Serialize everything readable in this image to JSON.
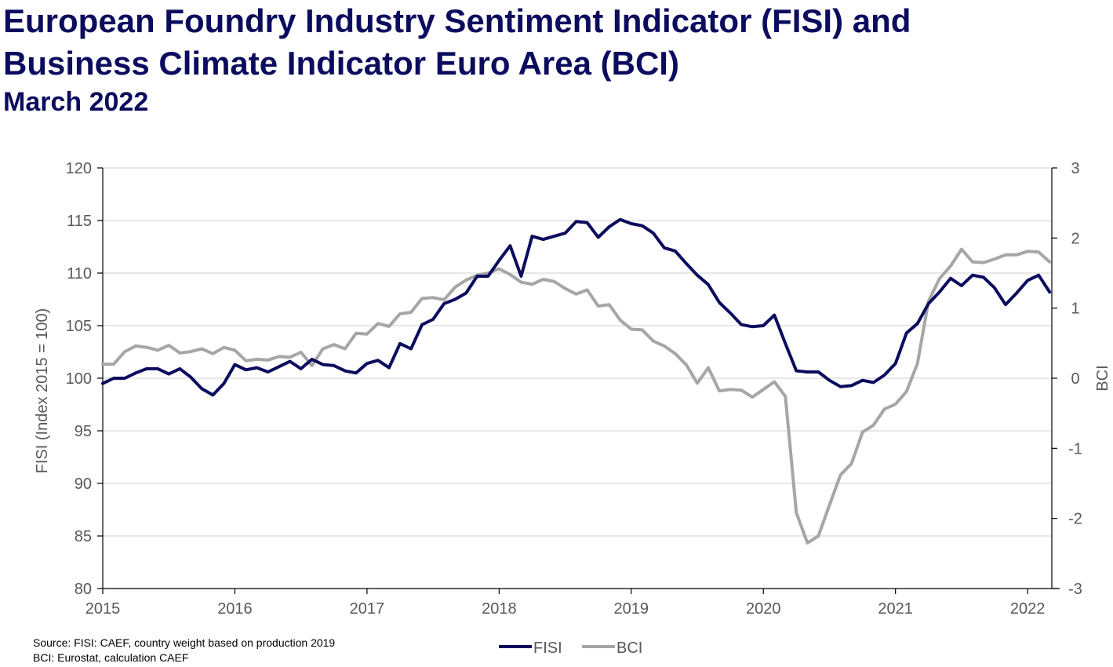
{
  "header": {
    "title_line1": "European Foundry Industry Sentiment Indicator (FISI) and",
    "title_line2": "Business Climate Indicator Euro Area (BCI)",
    "subtitle": "March 2022"
  },
  "source": {
    "line1": "Source: FISI: CAEF, country weight based on production 2019",
    "line2": "BCI: Eurostat, calculation CAEF"
  },
  "chart_data": {
    "type": "line",
    "x_ticks": [
      "2015",
      "2016",
      "2017",
      "2018",
      "2019",
      "2020",
      "2021",
      "2022"
    ],
    "x_start": "2015-01",
    "x_end": "2022-03",
    "y_left": {
      "label": "FISI (Index 2015 = 100)",
      "min": 80,
      "max": 120,
      "step": 5,
      "ticks": [
        "80",
        "85",
        "90",
        "95",
        "100",
        "105",
        "110",
        "115",
        "120"
      ]
    },
    "y_right": {
      "label": "BCI",
      "min": -3,
      "max": 3,
      "step": 1,
      "ticks": [
        "-3",
        "-2",
        "-1",
        "0",
        "1",
        "2",
        "3"
      ]
    },
    "grid": true,
    "legend": {
      "position": "bottom",
      "entries": [
        "FISI",
        "BCI"
      ]
    },
    "colors": {
      "FISI": "#0b0c5e",
      "BCI": "#a6a6a6",
      "grid": "#d9d9d9",
      "axis": "#000000",
      "title": "#0b0c5e"
    },
    "series": [
      {
        "name": "FISI",
        "axis": "left",
        "values": [
          99.5,
          100.0,
          100.0,
          100.5,
          100.9,
          100.9,
          100.4,
          100.9,
          100.1,
          99.0,
          98.4,
          99.5,
          101.3,
          100.8,
          101.0,
          100.6,
          101.1,
          101.6,
          100.9,
          101.8,
          101.3,
          101.2,
          100.7,
          100.5,
          101.4,
          101.7,
          101.0,
          103.3,
          102.8,
          105.1,
          105.6,
          107.1,
          107.5,
          108.1,
          109.7,
          109.7,
          111.2,
          112.6,
          109.7,
          113.5,
          113.2,
          113.5,
          113.8,
          114.9,
          114.8,
          113.4,
          114.4,
          115.1,
          114.7,
          114.5,
          113.8,
          112.4,
          112.1,
          110.9,
          109.8,
          108.9,
          107.2,
          106.2,
          105.1,
          104.9,
          105.0,
          106.0,
          103.3,
          100.7,
          100.6,
          100.6,
          99.8,
          99.2,
          99.3,
          99.8,
          99.6,
          100.3,
          101.4,
          104.3,
          105.2,
          107.1,
          108.2,
          109.5,
          108.8,
          109.8,
          109.6,
          108.6,
          107.0,
          108.1,
          109.3,
          109.8,
          108.2
        ]
      },
      {
        "name": "BCI",
        "axis": "right",
        "values": [
          0.2,
          0.2,
          0.38,
          0.46,
          0.44,
          0.4,
          0.47,
          0.36,
          0.38,
          0.42,
          0.35,
          0.44,
          0.4,
          0.25,
          0.27,
          0.26,
          0.31,
          0.3,
          0.37,
          0.18,
          0.42,
          0.48,
          0.42,
          0.64,
          0.63,
          0.78,
          0.74,
          0.92,
          0.94,
          1.14,
          1.15,
          1.12,
          1.3,
          1.4,
          1.47,
          1.5,
          1.56,
          1.48,
          1.37,
          1.34,
          1.41,
          1.38,
          1.28,
          1.2,
          1.26,
          1.03,
          1.05,
          0.83,
          0.7,
          0.69,
          0.53,
          0.46,
          0.35,
          0.19,
          -0.07,
          0.15,
          -0.18,
          -0.16,
          -0.17,
          -0.27,
          -0.16,
          -0.05,
          -0.26,
          -1.92,
          -2.35,
          -2.25,
          -1.81,
          -1.38,
          -1.22,
          -0.77,
          -0.67,
          -0.44,
          -0.37,
          -0.19,
          0.21,
          1.1,
          1.42,
          1.6,
          1.84,
          1.66,
          1.65,
          1.7,
          1.76,
          1.76,
          1.81,
          1.8,
          1.66
        ]
      }
    ]
  }
}
